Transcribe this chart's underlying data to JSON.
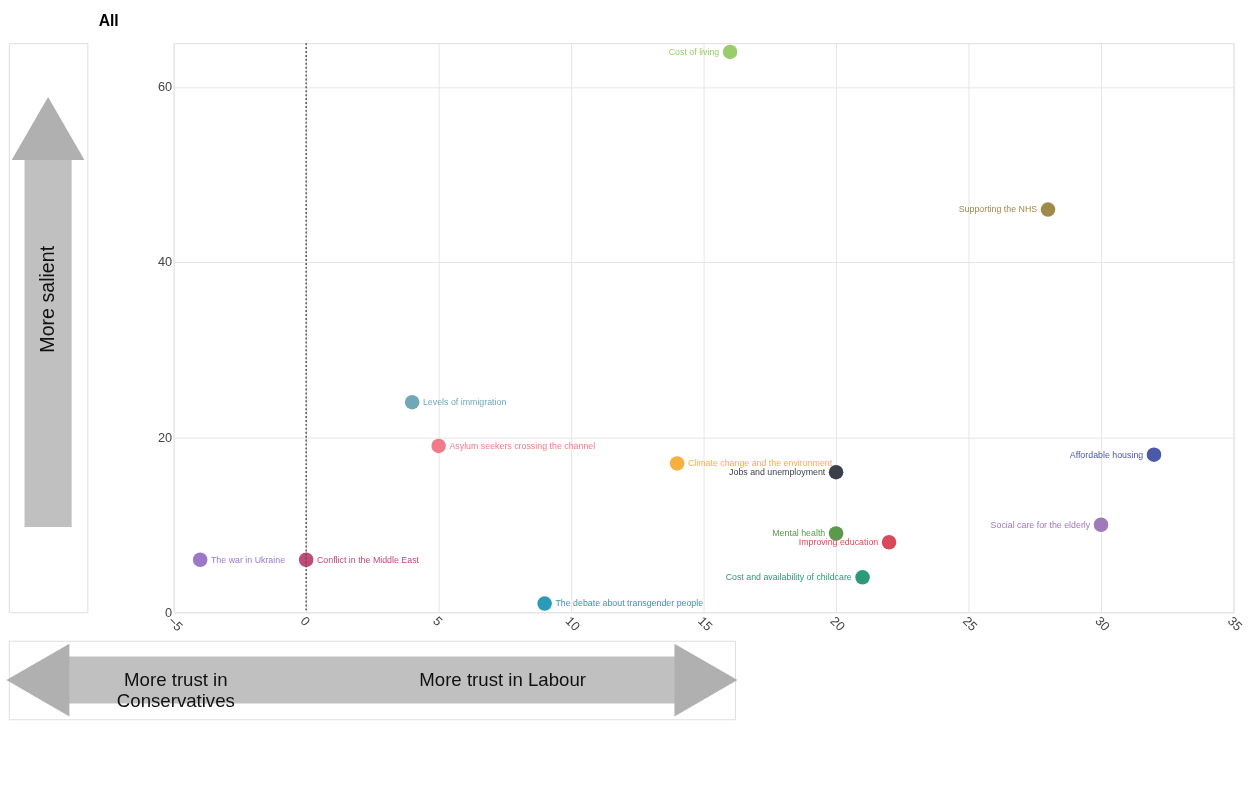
{
  "chart_data": {
    "type": "scatter",
    "title": "All",
    "annotations": [
      "More salient",
      "More trust in Conservatives",
      "More trust in Labour"
    ],
    "series": [
      {
        "name": "Cost of living",
        "color": "#9ccc6a",
        "x": [
          16
        ],
        "values": [
          64
        ]
      },
      {
        "name": "Supporting the NHS",
        "color": "#a08a4a",
        "x": [
          28
        ],
        "values": [
          46
        ]
      },
      {
        "name": "Levels of immigration",
        "color": "#6fa9b8",
        "x": [
          4
        ],
        "values": [
          24
        ]
      },
      {
        "name": "Asylum seekers crossing the channel",
        "color": "#f07a8a",
        "x": [
          5
        ],
        "values": [
          19
        ]
      },
      {
        "name": "Climate change and the environment",
        "color": "#f5b041",
        "x": [
          14
        ],
        "values": [
          17
        ]
      },
      {
        "name": "Jobs and unemployment",
        "color": "#3a3f4a",
        "x": [
          20
        ],
        "values": [
          16
        ]
      },
      {
        "name": "Affordable housing",
        "color": "#4a5aa8",
        "x": [
          32
        ],
        "values": [
          18
        ]
      },
      {
        "name": "Social care for the elderly",
        "color": "#a07ab8",
        "x": [
          30
        ],
        "values": [
          10
        ]
      },
      {
        "name": "Mental health",
        "color": "#5a9a4a",
        "x": [
          20
        ],
        "values": [
          9
        ]
      },
      {
        "name": "Improving education",
        "color": "#d84a5a",
        "x": [
          22
        ],
        "values": [
          8
        ]
      },
      {
        "name": "Cost and availability of childcare",
        "color": "#2a9a7a",
        "x": [
          21
        ],
        "values": [
          4
        ]
      },
      {
        "name": "The debate about transgender people",
        "color": "#2a9ab8",
        "x": [
          9
        ],
        "values": [
          1
        ]
      },
      {
        "name": "The war in Ukraine",
        "color": "#9a7ac8",
        "x": [
          -4
        ],
        "values": [
          6
        ]
      },
      {
        "name": "Conflict in the Middle East",
        "color": "#c04a7a",
        "x": [
          0
        ],
        "values": [
          6
        ]
      }
    ],
    "xlim": [
      -5,
      35
    ],
    "xticks": [
      -5,
      0,
      5,
      10,
      15,
      20,
      25,
      30,
      35
    ],
    "ylim": [
      0,
      65
    ],
    "yticks": [
      0,
      20,
      40,
      60
    ],
    "ref_lines": [
      {
        "axis": "x",
        "value": 0,
        "color": "#555555",
        "line_style": "dotted"
      }
    ],
    "grid": true,
    "legend": false,
    "marker": "circle"
  }
}
